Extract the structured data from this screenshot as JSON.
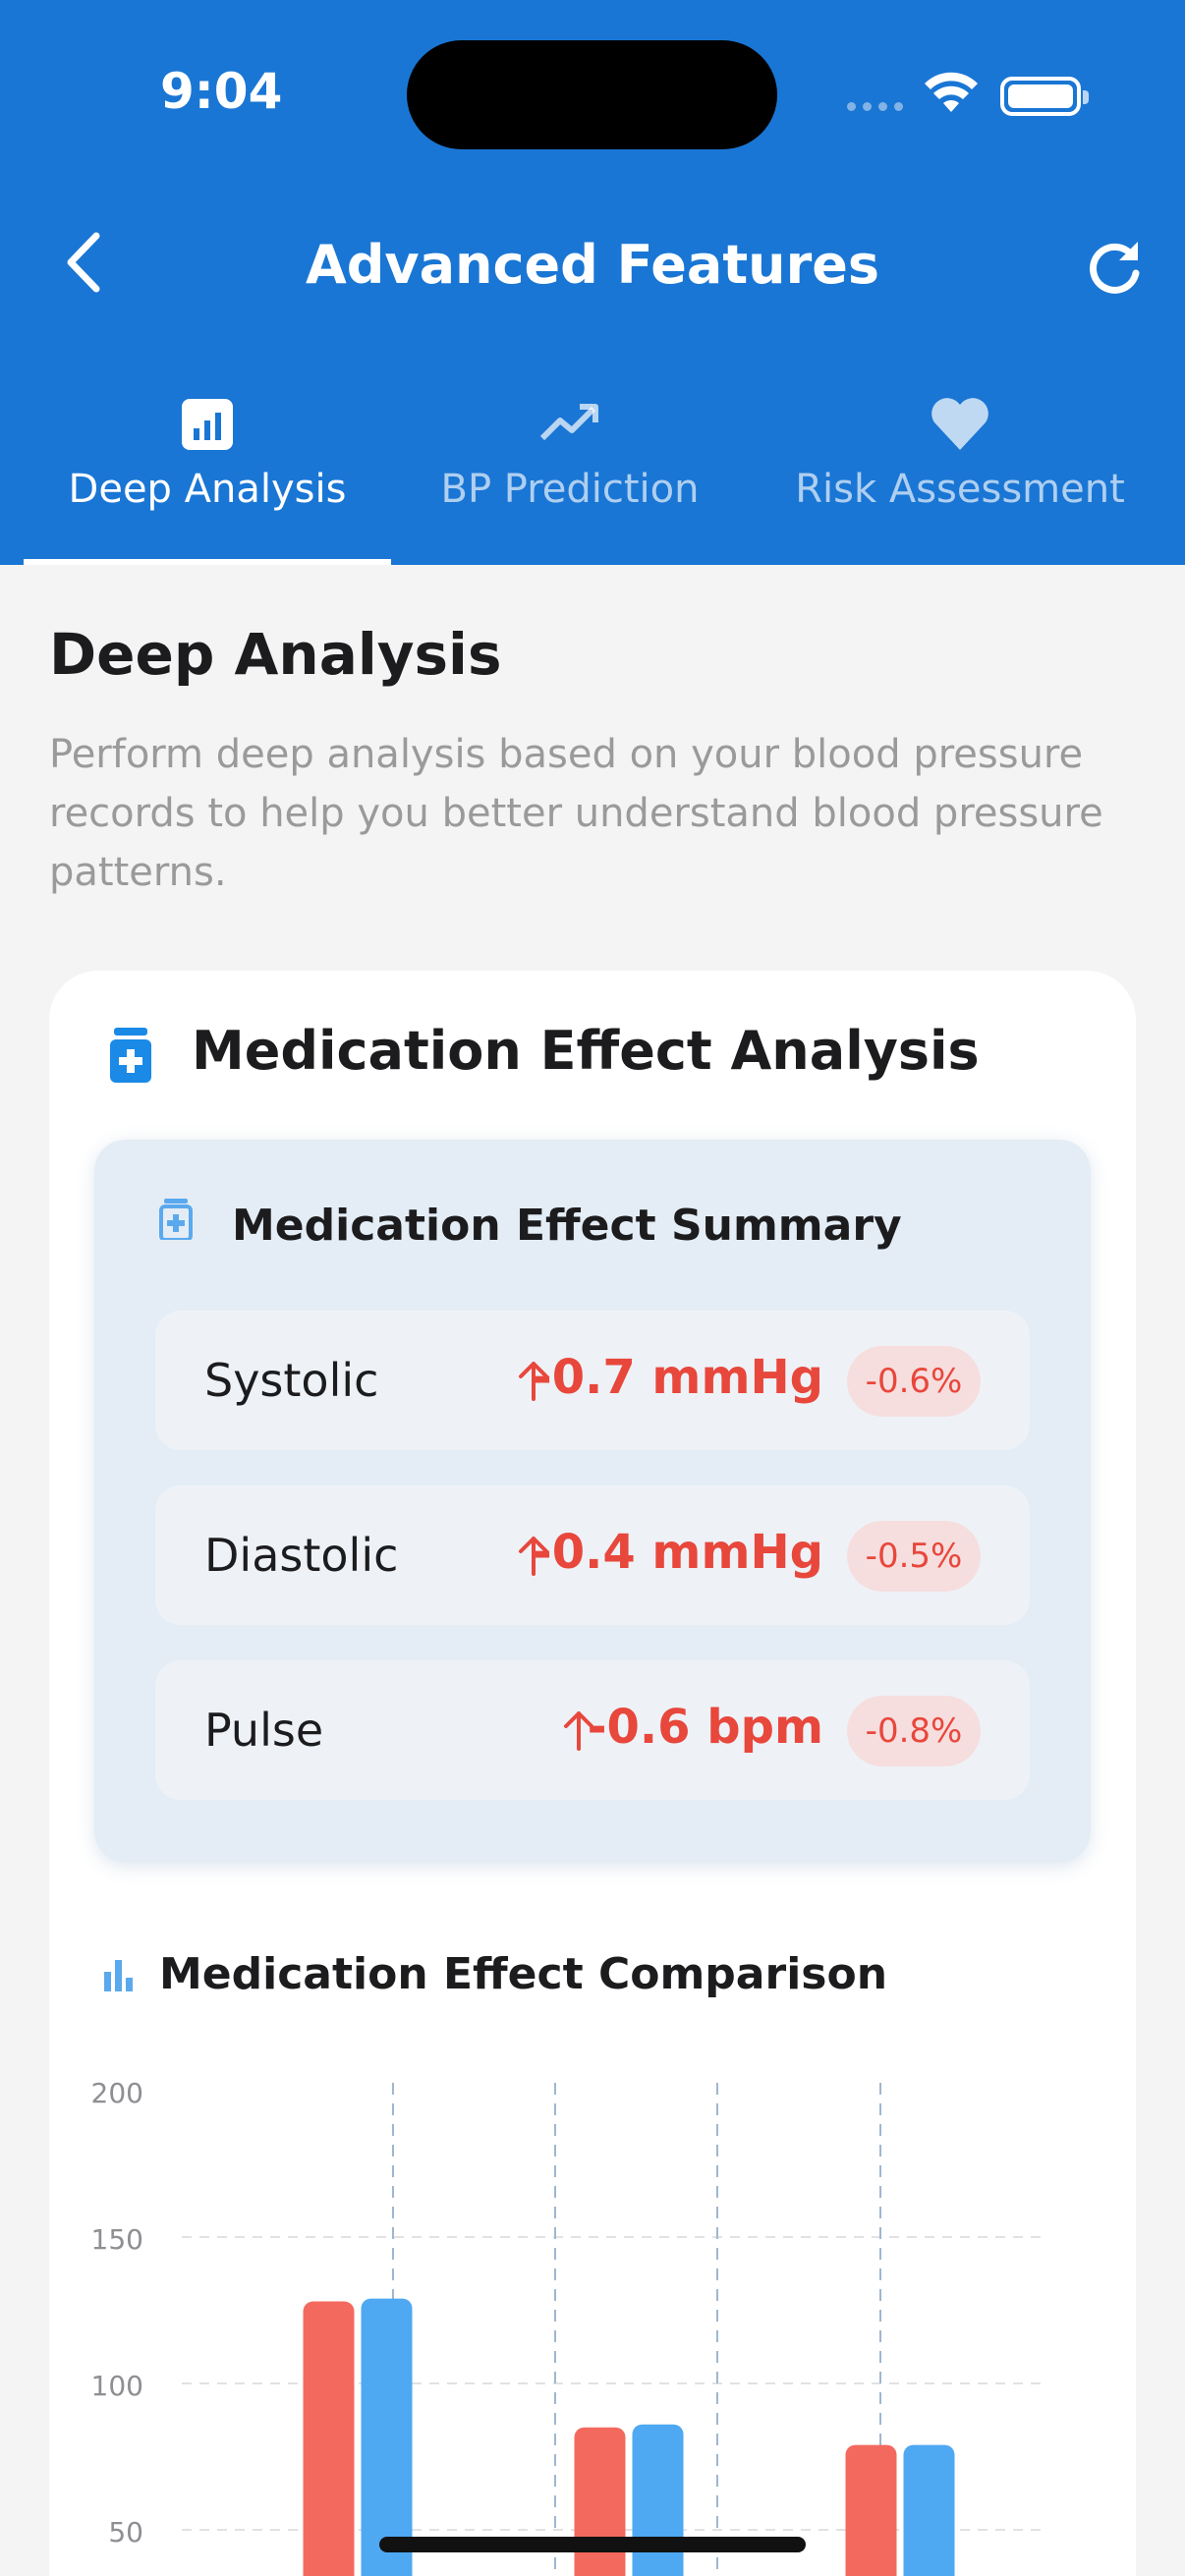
{
  "status_bar": {
    "time": "9:04"
  },
  "nav": {
    "title": "Advanced Features",
    "back_icon": "chevron-left-icon",
    "refresh_icon": "refresh-icon"
  },
  "tabs": [
    {
      "label": "Deep Analysis",
      "icon": "bar-chart-icon",
      "active": true
    },
    {
      "label": "BP Prediction",
      "icon": "trend-up-icon",
      "active": false
    },
    {
      "label": "Risk Assessment",
      "icon": "heart-icon",
      "active": false
    }
  ],
  "section": {
    "title": "Deep Analysis",
    "description": "Perform deep analysis based on your blood pressure records to help you better understand blood pressure patterns."
  },
  "card": {
    "title": "Medication Effect Analysis",
    "summary": {
      "title": "Medication Effect Summary",
      "metrics": [
        {
          "label": "Systolic",
          "value": "-0.7 mmHg",
          "percent": "-0.6%"
        },
        {
          "label": "Diastolic",
          "value": "-0.4 mmHg",
          "percent": "-0.5%"
        },
        {
          "label": "Pulse",
          "value": "-0.6 bpm",
          "percent": "-0.8%"
        }
      ]
    },
    "comparison_title": "Medication Effect Comparison"
  },
  "colors": {
    "primary": "#1a76d4",
    "negative": "#e8473c",
    "before": "#f4695e",
    "after": "#4ea8f2"
  },
  "chart_data": {
    "type": "bar",
    "categories": [
      "",
      "",
      ""
    ],
    "series": [
      {
        "values": [
          128,
          85,
          79
        ]
      },
      {
        "values": [
          129,
          86,
          79
        ]
      }
    ],
    "yticks": [
      "200",
      "150",
      "100",
      "50"
    ],
    "ylim": [
      0,
      200
    ],
    "grid": true
  }
}
